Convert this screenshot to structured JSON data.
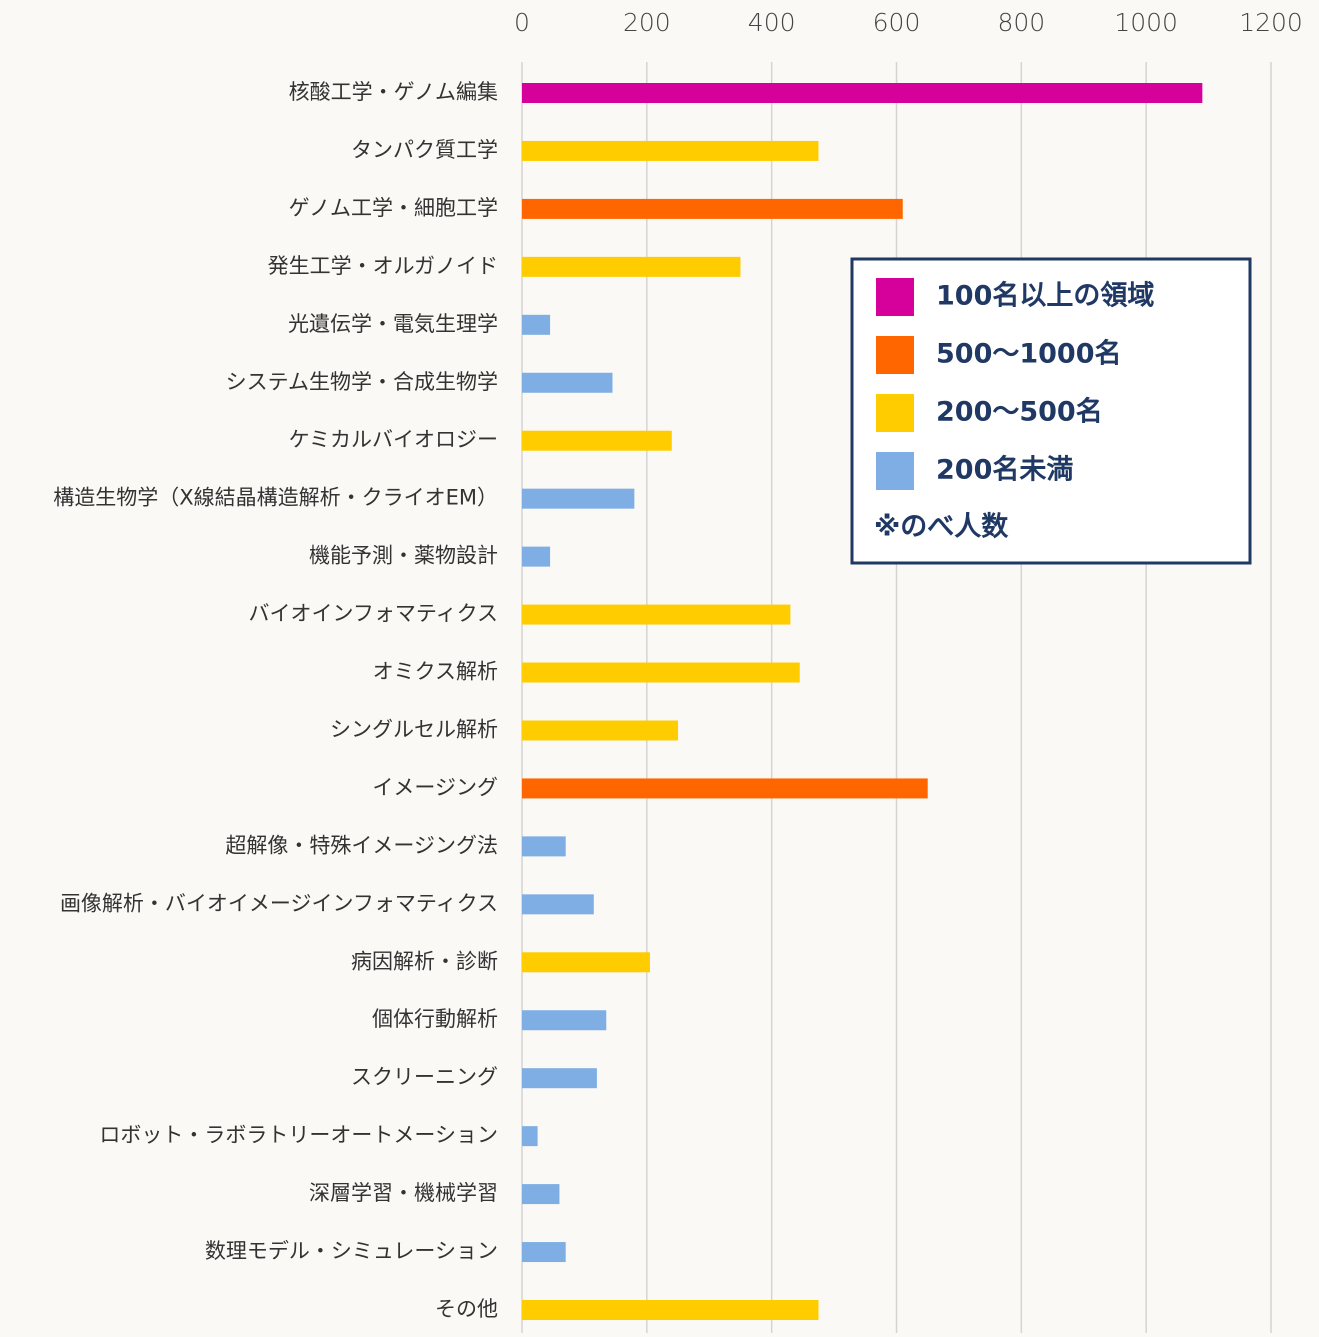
{
  "chart_data": {
    "type": "bar",
    "orientation": "horizontal",
    "categories": [
      "核酸工学・ゲノム編集",
      "タンパク質工学",
      "ゲノム工学・細胞工学",
      "発生工学・オルガノイド",
      "光遺伝学・電気生理学",
      "システム生物学・合成生物学",
      "ケミカルバイオロジー",
      "構造生物学（X線結晶構造解析・クライオEM）",
      "機能予測・薬物設計",
      "バイオインフォマティクス",
      "オミクス解析",
      "シングルセル解析",
      "イメージング",
      "超解像・特殊イメージング法",
      "画像解析・バイオイメージインフォマティクス",
      "病因解析・診断",
      "個体行動解析",
      "スクリーニング",
      "ロボット・ラボラトリーオートメーション",
      "深層学習・機械学習",
      "数理モデル・シミュレーション",
      "その他"
    ],
    "values": [
      1090,
      475,
      610,
      350,
      45,
      145,
      240,
      180,
      45,
      430,
      445,
      250,
      650,
      70,
      115,
      205,
      135,
      120,
      25,
      60,
      70,
      475
    ],
    "colors": [
      "#d6009b",
      "#ffcc00",
      "#ff6600",
      "#ffcc00",
      "#7eaee3",
      "#7eaee3",
      "#ffcc00",
      "#7eaee3",
      "#7eaee3",
      "#ffcc00",
      "#ffcc00",
      "#ffcc00",
      "#ff6600",
      "#7eaee3",
      "#7eaee3",
      "#ffcc00",
      "#7eaee3",
      "#7eaee3",
      "#7eaee3",
      "#7eaee3",
      "#7eaee3",
      "#ffcc00"
    ],
    "xlim": [
      0,
      1200
    ],
    "xticks": [
      0,
      200,
      400,
      600,
      800,
      1000,
      1200
    ],
    "grid": true,
    "legend": [
      {
        "name": "100名以上の領域",
        "color": "#d6009b"
      },
      {
        "name": "500〜1000名",
        "color": "#ff6600"
      },
      {
        "name": "200〜500名",
        "color": "#ffcc00"
      },
      {
        "name": "200名未満",
        "color": "#7eaee3"
      }
    ],
    "legend_note": "※のべ人数"
  }
}
